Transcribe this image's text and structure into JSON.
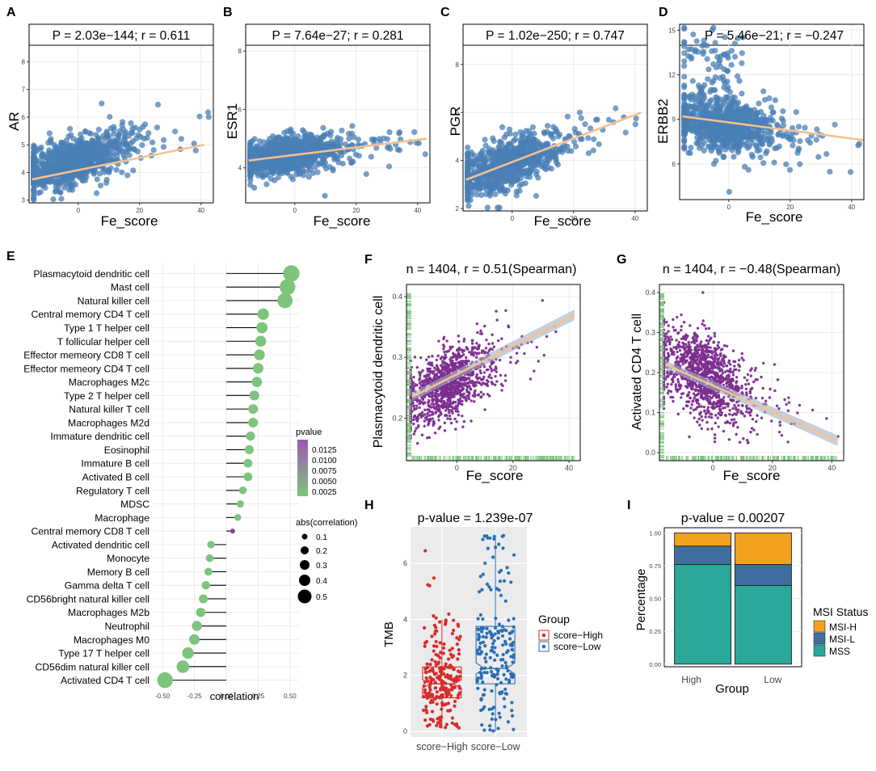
{
  "figure": {
    "panel_letters": [
      "A",
      "B",
      "C",
      "D",
      "E",
      "F",
      "G",
      "H",
      "I"
    ]
  },
  "chart_data": [
    {
      "panel": "A",
      "type": "scatter",
      "title": "P = 2.03e−144; r = 0.611",
      "xlabel": "Fe_score",
      "ylabel": "AR",
      "xlim": [
        -16,
        44
      ],
      "ylim": [
        2.9,
        8.6
      ],
      "xticks": [
        0,
        20,
        40
      ],
      "yticks": [
        3,
        4,
        5,
        6,
        7,
        8
      ],
      "cloud": {
        "x_center": -2,
        "x_spread": 9,
        "y_intercept": 4.45,
        "slope": 0.032,
        "y_sd": 0.42,
        "n": 900
      },
      "fit": {
        "x": [
          -15,
          41
        ],
        "y": [
          3.75,
          5.0
        ]
      },
      "colors": {
        "point": "#4a7fb5",
        "fit": "#f5c18f"
      }
    },
    {
      "panel": "B",
      "type": "scatter",
      "title": "P = 7.64e−27; r = 0.281",
      "xlabel": "Fe_score",
      "ylabel": "ESR1",
      "xlim": [
        -16,
        44
      ],
      "ylim": [
        2.8,
        8.2
      ],
      "xticks": [
        0,
        20,
        40
      ],
      "yticks": [
        4,
        6,
        8
      ],
      "cloud": {
        "x_center": -2,
        "x_spread": 9,
        "y_intercept": 4.45,
        "slope": 0.013,
        "y_sd": 0.32,
        "n": 900
      },
      "fit": {
        "x": [
          -15,
          43
        ],
        "y": [
          4.25,
          5.0
        ]
      },
      "colors": {
        "point": "#4a7fb5",
        "fit": "#f5c18f"
      }
    },
    {
      "panel": "C",
      "type": "scatter",
      "title": "P = 1.02e−250; r = 0.747",
      "xlabel": "Fe_score",
      "ylabel": "PGR",
      "xlim": [
        -16,
        44
      ],
      "ylim": [
        1.9,
        8.8
      ],
      "xticks": [
        0,
        20,
        40
      ],
      "yticks": [
        2,
        4,
        6,
        8
      ],
      "cloud": {
        "x_center": -2,
        "x_spread": 9,
        "y_intercept": 3.9,
        "slope": 0.047,
        "y_sd": 0.5,
        "n": 900
      },
      "fit": {
        "x": [
          -15,
          42
        ],
        "y": [
          3.2,
          6.0
        ]
      },
      "colors": {
        "point": "#4a7fb5",
        "fit": "#f5c18f"
      }
    },
    {
      "panel": "D",
      "type": "scatter",
      "title": "P = 5.46e−21; r = −0.247",
      "xlabel": "Fe_score",
      "ylabel": "ERBB2",
      "xlim": [
        -16,
        44
      ],
      "ylim": [
        3.6,
        15.4
      ],
      "xticks": [
        0,
        20,
        40
      ],
      "yticks": [
        6,
        9,
        12,
        15
      ],
      "cloud": {
        "x_center": -2,
        "x_spread": 9,
        "y_intercept": 8.6,
        "slope": -0.03,
        "y_sd": 0.95,
        "n": 900
      },
      "fit": {
        "x": [
          -15,
          44
        ],
        "y": [
          9.2,
          7.6
        ]
      },
      "colors": {
        "point": "#4a7fb5",
        "fit": "#f5c18f"
      }
    },
    {
      "panel": "E",
      "type": "lollipop",
      "xlabel": "correlation",
      "xlim": [
        -0.57,
        0.57
      ],
      "xticks": [
        -0.5,
        -0.25,
        0.0,
        0.25,
        0.5
      ],
      "xtick_labels": [
        "-0.50",
        "-0.25",
        "0.00",
        "0.25",
        "0.50"
      ],
      "categories": [
        "Plasmacytoid dendritic cell",
        "Mast cell",
        "Natural killer cell",
        "Central memory CD4 T cell",
        "Type 1 T helper cell",
        "T follicular helper cell",
        "Effector memeory CD8 T cell",
        "Effector memeory CD4 T cell",
        "Macrophages M2c",
        "Type 2 T helper cell",
        "Natural killer T cell",
        "Macrophages M2d",
        "Immature dendritic cell",
        "Eosinophil",
        "Immature  B cell",
        "Activated B cell",
        "Regulatory T cell",
        "MDSC",
        "Macrophage",
        "Central memory CD8 T cell",
        "Activated dendritic cell",
        "Monocyte",
        "Memory B cell",
        "Gamma delta T cell",
        "CD56bright natural killer cell",
        "Macrophages M2b",
        "Neutrophil",
        "Macrophages M0",
        "Type 17 T helper cell",
        "CD56dim natural killer cell",
        "Activated CD4 T cell"
      ],
      "values": [
        0.51,
        0.48,
        0.46,
        0.29,
        0.28,
        0.27,
        0.26,
        0.25,
        0.24,
        0.22,
        0.21,
        0.21,
        0.19,
        0.18,
        0.17,
        0.17,
        0.13,
        0.11,
        0.09,
        0.05,
        -0.12,
        -0.13,
        -0.14,
        -0.16,
        -0.18,
        -0.2,
        -0.23,
        -0.25,
        -0.3,
        -0.34,
        -0.48
      ],
      "highlight_index": 19,
      "colors": {
        "point": "#7dc47d",
        "highlight": "#8b3f98",
        "stem": "#000000"
      },
      "legend_pvalue": {
        "title": "pvalue",
        "labels": [
          "0.0125",
          "0.0100",
          "0.0075",
          "0.0050",
          "0.0025"
        ],
        "color_high": "#9b59b6",
        "color_low": "#7dc47d"
      },
      "legend_size": {
        "title": "abs(correlation)",
        "labels": [
          "0.1",
          "0.2",
          "0.3",
          "0.4",
          "0.5"
        ]
      }
    },
    {
      "panel": "F",
      "type": "scatter",
      "title": "n = 1404, r = 0.51(Spearman)",
      "xlabel": "Fe_score",
      "ylabel": "Plasmacytoid dendritic cell",
      "xlim": [
        -18,
        44
      ],
      "ylim": [
        0.13,
        0.42
      ],
      "xticks": [
        0,
        20,
        40
      ],
      "yticks": [
        0.2,
        0.3,
        0.4
      ],
      "ytick_labels": [
        "0.2",
        "0.3",
        "0.4"
      ],
      "cloud": {
        "x_center": -3,
        "x_spread": 8,
        "y_intercept": 0.265,
        "slope": 0.0023,
        "y_sd": 0.028,
        "n": 1200
      },
      "fit": {
        "x": [
          -16,
          42
        ],
        "y": [
          0.235,
          0.37
        ]
      },
      "colors": {
        "point": "#7b2d8e",
        "fit": "#f5c18f",
        "band": "#9fb0c8",
        "rug": "#7dc47d"
      }
    },
    {
      "panel": "G",
      "type": "scatter",
      "title": "n = 1404, r = −0.48(Spearman)",
      "xlabel": "Fe_score",
      "ylabel": "Activated CD4 T cell",
      "xlim": [
        -18,
        44
      ],
      "ylim": [
        -0.02,
        0.42
      ],
      "xticks": [
        0,
        20,
        40
      ],
      "yticks": [
        0.0,
        0.1,
        0.2,
        0.3,
        0.4
      ],
      "ytick_labels": [
        "0.0",
        "0.1",
        "0.2",
        "0.3",
        "0.4"
      ],
      "cloud": {
        "x_center": -3,
        "x_spread": 8,
        "y_intercept": 0.18,
        "slope": -0.0036,
        "y_sd": 0.05,
        "n": 1200
      },
      "fit": {
        "x": [
          -16,
          42
        ],
        "y": [
          0.22,
          0.03
        ]
      },
      "colors": {
        "point": "#7b2d8e",
        "fit": "#f5c18f",
        "band": "#9fb0c8",
        "rug": "#7dc47d"
      }
    },
    {
      "panel": "H",
      "type": "box",
      "title": "p-value = 1.239e-07",
      "xlabel": "",
      "ylabel": "TMB",
      "ylim": [
        -0.2,
        7.3
      ],
      "yticks": [
        0,
        2,
        4,
        6
      ],
      "categories": [
        "score−High",
        "score−Low"
      ],
      "groups": [
        {
          "name": "score−High",
          "q1": 1.2,
          "median": 1.7,
          "q3": 2.3,
          "whisker_low": 0.1,
          "whisker_high": 4.0,
          "notch": [
            1.55,
            1.85
          ],
          "max_outlier": 6.5,
          "n": 230,
          "color": "#d62c2c"
        },
        {
          "name": "score−Low",
          "q1": 1.7,
          "median": 2.25,
          "q3": 3.75,
          "whisker_low": 0.0,
          "whisker_high": 6.9,
          "notch": [
            2.05,
            2.45
          ],
          "max_outlier": 7.0,
          "n": 200,
          "color": "#2a6fb5"
        }
      ],
      "legend": {
        "title": "Group",
        "labels": [
          "score−High",
          "score−Low"
        ]
      },
      "colors": {
        "panel_bg": "#ebebeb",
        "grid": "#ffffff"
      }
    },
    {
      "panel": "I",
      "type": "bar",
      "stacked": true,
      "title": "p-value = 0.00207",
      "xlabel": "Group",
      "ylabel": "Percentage",
      "ylim": [
        -0.02,
        1.04
      ],
      "yticks": [
        0.0,
        0.25,
        0.5,
        0.75,
        1.0
      ],
      "ytick_labels": [
        "0.00",
        "0.25",
        "0.50",
        "0.75",
        "1.00"
      ],
      "categories": [
        "High",
        "Low"
      ],
      "series": [
        {
          "name": "MSS",
          "values": [
            0.76,
            0.6
          ],
          "color": "#2aa89a"
        },
        {
          "name": "MSI-L",
          "values": [
            0.14,
            0.16
          ],
          "color": "#3f6fa0"
        },
        {
          "name": "MSI-H",
          "values": [
            0.1,
            0.24
          ],
          "color": "#f2a21e"
        }
      ],
      "legend": {
        "title": "MSI Status",
        "labels": [
          "MSI-H",
          "MSI-L",
          "MSS"
        ]
      }
    }
  ]
}
